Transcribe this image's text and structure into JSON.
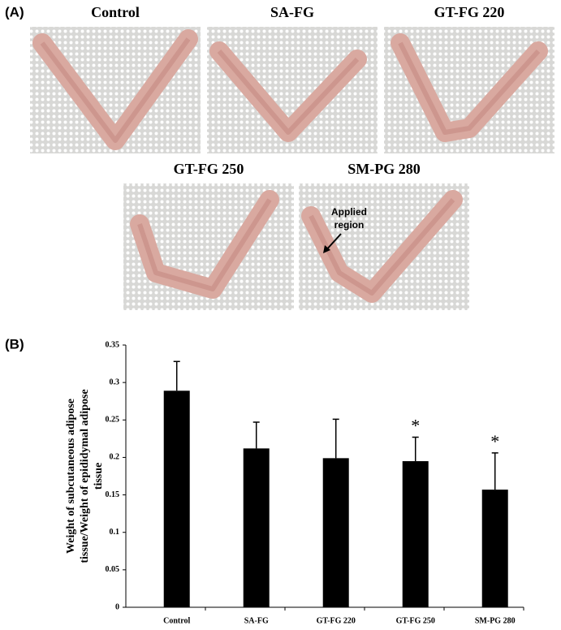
{
  "panel_a": {
    "label": "(A)",
    "images": [
      {
        "title": "Control"
      },
      {
        "title": "SA-FG"
      },
      {
        "title": "GT-FG 220"
      },
      {
        "title": "GT-FG 250"
      },
      {
        "title": "SM-PG 280",
        "annotation": [
          "Applied",
          "region"
        ]
      }
    ]
  },
  "chart_data": {
    "type": "bar",
    "panel_label": "(B)",
    "ylabel": [
      "Weight of subcutaneous adipose",
      "tissue/Weight of epididymal adipose",
      "tissue"
    ],
    "categories": [
      "Control",
      "SA-FG",
      "GT-FG 220",
      "GT-FG 250",
      "SM-PG 280"
    ],
    "values": [
      0.289,
      0.212,
      0.199,
      0.195,
      0.157
    ],
    "errors": [
      0.039,
      0.035,
      0.052,
      0.032,
      0.049
    ],
    "significance": [
      null,
      null,
      null,
      "*",
      "*"
    ],
    "color": "#000000",
    "ylim": [
      0,
      0.35
    ],
    "yticks": [
      0,
      0.05,
      0.1,
      0.15,
      0.2,
      0.25,
      0.3,
      0.35
    ]
  }
}
